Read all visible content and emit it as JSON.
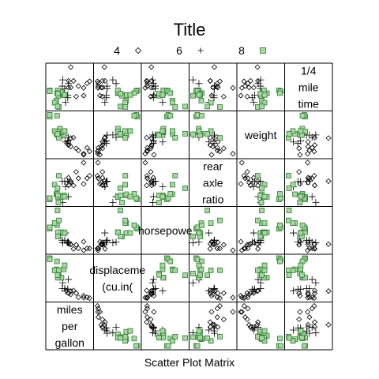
{
  "chart_data": {
    "type": "scatter",
    "subtype": "scatter-plot-matrix",
    "title": "Title",
    "xlabel": "Scatter Plot Matrix",
    "legend": {
      "placement": "top",
      "entries": [
        {
          "label": "4",
          "symbol": "diamond",
          "color": "#000000"
        },
        {
          "label": "6",
          "symbol": "plus",
          "color": "#000000"
        },
        {
          "label": "8",
          "symbol": "square",
          "color": "#2e7d32",
          "fill": "#a8d5a2"
        }
      ]
    },
    "variables": [
      [
        "miles",
        "per",
        "gallon"
      ],
      [
        "displaceme",
        "(cu.in("
      ],
      [
        "horsepowe"
      ],
      [
        "rear",
        "axle",
        "ratio"
      ],
      [
        "weight"
      ],
      [
        "1/4",
        "mile",
        "time"
      ]
    ],
    "grid": true,
    "series": [
      {
        "name": "4",
        "mpg": [
          22.8,
          24.4,
          22.8,
          32.4,
          30.4,
          33.9,
          21.5,
          27.3,
          26.0,
          30.4,
          21.4
        ],
        "disp": [
          108.0,
          146.7,
          140.8,
          78.7,
          75.7,
          71.1,
          120.1,
          79.0,
          120.3,
          95.1,
          121.0
        ],
        "hp": [
          93,
          62,
          95,
          66,
          52,
          65,
          97,
          66,
          91,
          113,
          109
        ],
        "drat": [
          3.85,
          3.69,
          3.92,
          4.08,
          4.93,
          4.22,
          3.7,
          4.08,
          4.43,
          3.77,
          4.11
        ],
        "wt": [
          2.32,
          3.19,
          3.15,
          2.2,
          1.615,
          1.835,
          2.465,
          1.935,
          2.14,
          1.513,
          2.78
        ],
        "qsec": [
          18.61,
          20.0,
          22.9,
          19.47,
          18.52,
          19.9,
          20.01,
          18.9,
          16.7,
          16.9,
          18.6
        ]
      },
      {
        "name": "6",
        "mpg": [
          21.0,
          21.0,
          21.4,
          18.1,
          19.2,
          17.8,
          19.7
        ],
        "disp": [
          160.0,
          160.0,
          258.0,
          225.0,
          167.6,
          167.6,
          145.0
        ],
        "hp": [
          110,
          110,
          110,
          105,
          123,
          123,
          175
        ],
        "drat": [
          3.9,
          3.9,
          3.08,
          2.76,
          3.92,
          3.92,
          3.62
        ],
        "wt": [
          2.62,
          2.875,
          3.215,
          3.46,
          3.44,
          3.44,
          2.77
        ],
        "qsec": [
          16.46,
          17.02,
          19.44,
          20.22,
          18.3,
          18.9,
          15.5
        ]
      },
      {
        "name": "8",
        "mpg": [
          18.7,
          14.3,
          16.4,
          17.3,
          15.2,
          10.4,
          10.4,
          14.7,
          15.5,
          15.2,
          13.3,
          19.2,
          15.8,
          15.0
        ],
        "disp": [
          360.0,
          360.0,
          275.8,
          275.8,
          275.8,
          472.0,
          460.0,
          440.0,
          318.0,
          304.0,
          350.0,
          400.0,
          351.0,
          301.0
        ],
        "hp": [
          175,
          245,
          180,
          180,
          180,
          205,
          215,
          230,
          150,
          150,
          245,
          175,
          264,
          335
        ],
        "drat": [
          3.15,
          3.21,
          3.07,
          3.07,
          3.07,
          2.93,
          3.0,
          3.23,
          2.76,
          3.15,
          3.73,
          3.08,
          4.22,
          3.54
        ],
        "wt": [
          3.44,
          3.57,
          4.07,
          3.73,
          3.78,
          5.25,
          5.424,
          5.345,
          3.52,
          3.435,
          3.84,
          3.845,
          3.17,
          3.57
        ],
        "qsec": [
          17.02,
          15.84,
          17.4,
          17.6,
          18.0,
          17.98,
          17.82,
          17.42,
          16.87,
          17.3,
          15.41,
          17.05,
          14.5,
          14.6
        ]
      }
    ]
  }
}
